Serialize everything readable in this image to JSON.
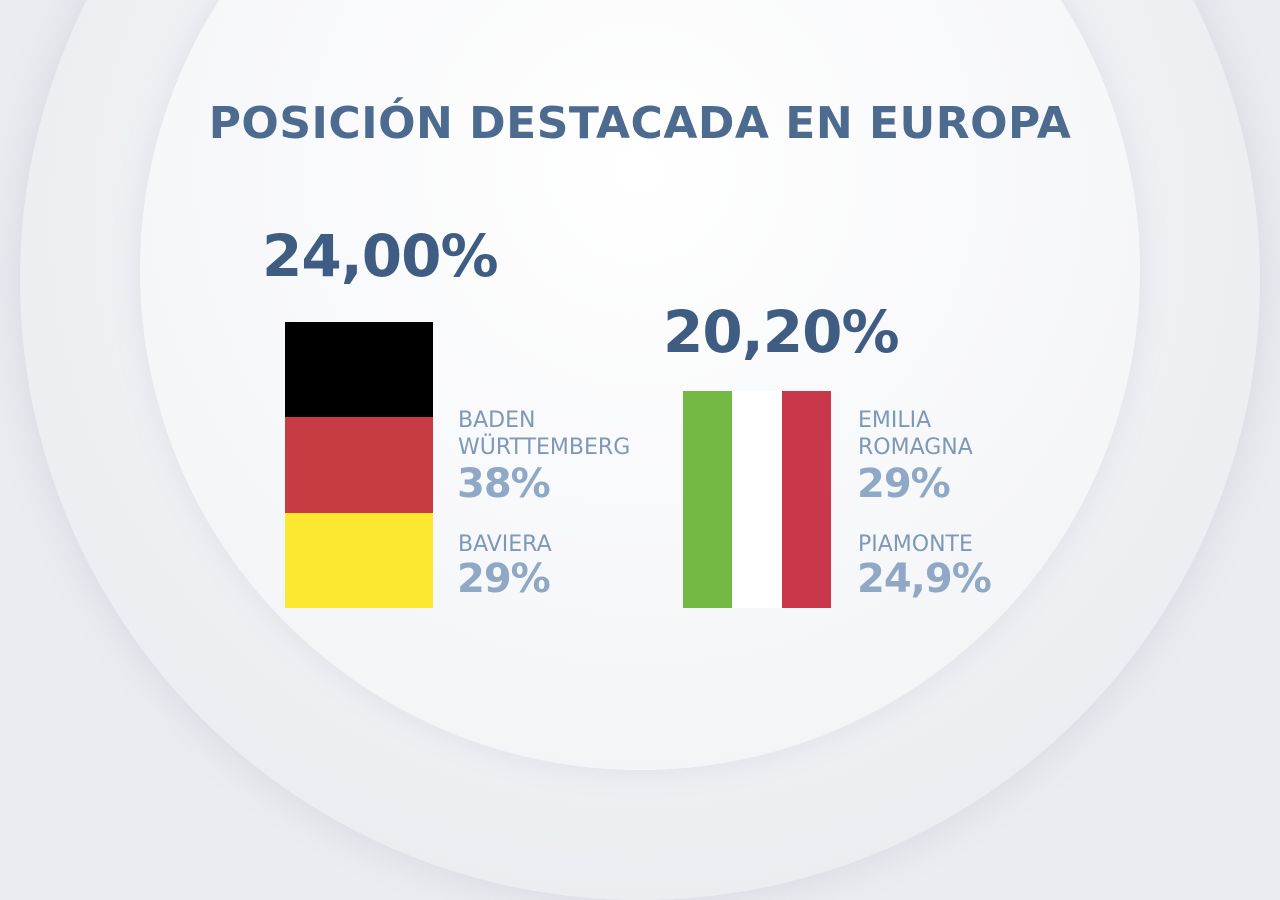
{
  "title": "POSICIÓN DESTACADA EN EUROPA",
  "chart_data": [
    {
      "type": "table",
      "country_value": "24,00%",
      "flag_colors": [
        "#000000",
        "#c73b42",
        "#fce831"
      ],
      "regions": [
        {
          "name": "BADEN\nWÜRTTEMBERG",
          "value": "38%"
        },
        {
          "name": "BAVIERA",
          "value": "29%"
        }
      ]
    },
    {
      "type": "table",
      "country_value": "20,20%",
      "flag_colors": [
        "#74b944",
        "#ffffff",
        "#c8384a"
      ],
      "regions": [
        {
          "name": "EMILIA\nROMAGNA",
          "value": "29%"
        },
        {
          "name": "PIAMONTE",
          "value": "24,9%"
        }
      ]
    }
  ]
}
